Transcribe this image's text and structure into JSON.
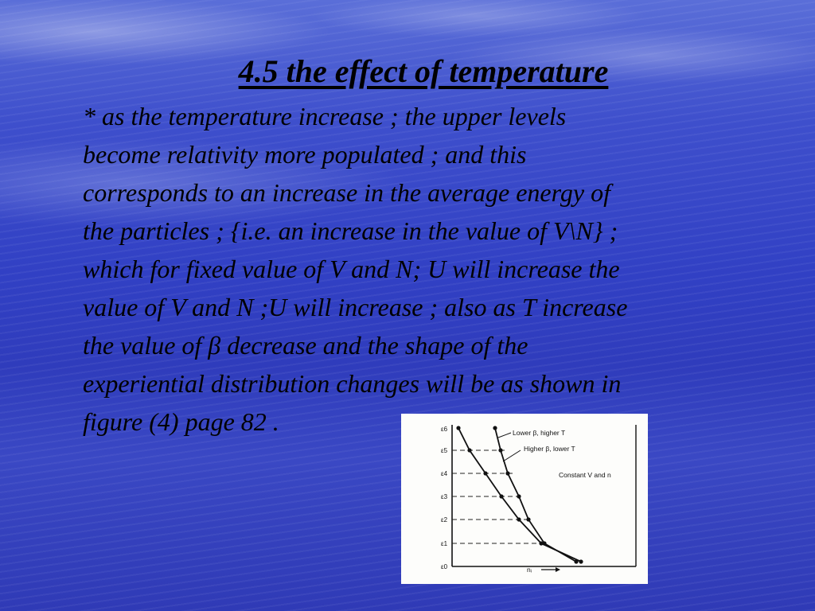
{
  "slide": {
    "title": "4.5 the effect of temperature",
    "body": "* as the temperature increase ; the upper levels\nbecome relativity more populated ; and this\ncorresponds to an increase in the average energy of\nthe particles ; {i.e. an increase in the value of V\\N} ;\nwhich for fixed value of V and N; U will increase the\nvalue of V and N ;U will increase ; also as T increase\nthe value of β decrease and the shape of the\nexperiential  distribution changes will be as shown in\nfigure (4) page 82 ."
  },
  "figure": {
    "level_labels": [
      "ε6",
      "ε5",
      "ε4",
      "ε3",
      "ε2",
      "ε1",
      "ε0"
    ],
    "curve_label_lower_beta": "Lower β, higher T",
    "curve_label_higher_beta": "Higher β, lower T",
    "constant_label": "Constant V and n",
    "x_axis_label": "nᵢ"
  }
}
